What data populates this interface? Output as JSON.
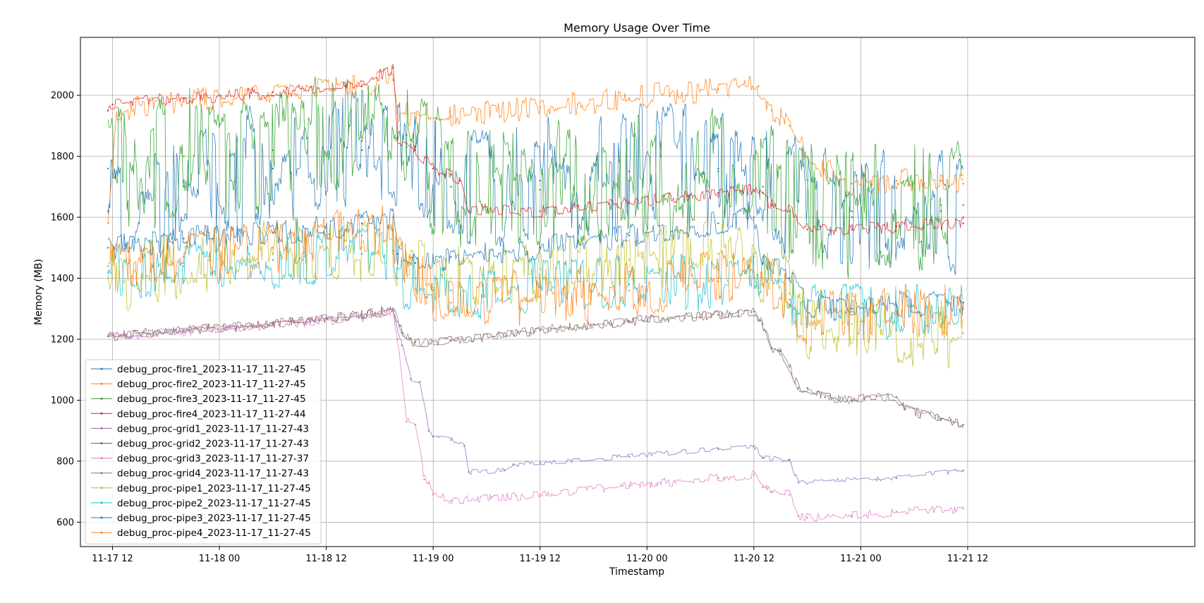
{
  "chart_data": {
    "type": "line",
    "title": "Memory Usage Over Time",
    "xlabel": "Timestamp",
    "ylabel": "Memory (MB)",
    "x_axis": "datetime (hours after 2023-11-17 00:00)",
    "xlim": [
      8.4,
      133.5
    ],
    "ylim": [
      520,
      2190
    ],
    "x_ticks": [
      {
        "value": 12,
        "label": "11-17 12"
      },
      {
        "value": 24,
        "label": "11-18 00"
      },
      {
        "value": 36,
        "label": "11-18 12"
      },
      {
        "value": 48,
        "label": "11-19 00"
      },
      {
        "value": 60,
        "label": "11-19 12"
      },
      {
        "value": 72,
        "label": "11-20 00"
      },
      {
        "value": 84,
        "label": "11-20 12"
      },
      {
        "value": 96,
        "label": "11-21 00"
      },
      {
        "value": 108,
        "label": "11-21 12"
      }
    ],
    "y_ticks": [
      600,
      800,
      1000,
      1200,
      1400,
      1600,
      1800,
      2000
    ],
    "grid": true,
    "legend_position": "lower-left",
    "series": [
      {
        "name": "debug_proc-fire1_2023-11-17_11-27-45",
        "color": "#1f77b4",
        "x": [
          11.5,
          20,
          30,
          40,
          45,
          50,
          60,
          70,
          80,
          85,
          95,
          105,
          107.5
        ],
        "y": [
          1620,
          1700,
          1760,
          1820,
          1870,
          1700,
          1720,
          1750,
          1760,
          1700,
          1600,
          1620,
          1600
        ],
        "band": 200
      },
      {
        "name": "debug_proc-fire2_2023-11-17_11-27-45",
        "color": "#ff7f0e",
        "x": [
          11.5,
          12.5,
          20,
          30,
          40,
          43.5,
          44,
          50,
          60,
          70,
          80,
          84.5,
          86,
          88,
          90,
          95,
          100,
          105,
          107.5
        ],
        "y": [
          1580,
          1960,
          1980,
          2000,
          2030,
          2050,
          1940,
          1930,
          1960,
          1990,
          2020,
          2030,
          1950,
          1900,
          1800,
          1710,
          1720,
          1720,
          1710
        ],
        "band": 40
      },
      {
        "name": "debug_proc-fire3_2023-11-17_11-27-45",
        "color": "#2ca02c",
        "x": [
          11.5,
          20,
          30,
          40,
          45,
          50,
          60,
          70,
          80,
          85,
          95,
          105,
          107.5
        ],
        "y": [
          1760,
          1800,
          1820,
          1850,
          1830,
          1700,
          1690,
          1720,
          1750,
          1680,
          1620,
          1640,
          1640
        ],
        "band": 210
      },
      {
        "name": "debug_proc-fire4_2023-11-17_11-27-44",
        "color": "#d62728",
        "x": [
          11.5,
          12,
          20,
          30,
          40,
          43.5,
          44,
          46,
          48,
          50,
          51,
          52,
          60,
          70,
          80,
          84,
          86,
          88,
          90,
          95,
          100,
          107.5
        ],
        "y": [
          1950,
          1970,
          1990,
          2010,
          2030,
          2090,
          1860,
          1820,
          1760,
          1740,
          1720,
          1620,
          1620,
          1650,
          1680,
          1690,
          1640,
          1620,
          1560,
          1560,
          1570,
          1580
        ],
        "band": 20
      },
      {
        "name": "debug_proc-grid1_2023-11-17_11-27-43",
        "color": "#9467bd",
        "x": [
          11.5,
          20,
          30,
          40,
          43.5,
          44.5,
          45.5,
          46.5,
          47.5,
          48,
          50,
          51.5,
          52,
          56,
          57,
          60,
          70,
          80,
          84,
          85,
          88,
          89,
          100,
          107.5
        ],
        "y": [
          1210,
          1230,
          1250,
          1280,
          1300,
          1180,
          1070,
          1060,
          900,
          880,
          870,
          850,
          765,
          770,
          790,
          795,
          815,
          840,
          850,
          810,
          805,
          730,
          745,
          770
        ],
        "band": 8
      },
      {
        "name": "debug_proc-grid2_2023-11-17_11-27-43",
        "color": "#8c564b",
        "x": [
          11.5,
          20,
          30,
          40,
          43.5,
          44.5,
          46,
          50,
          60,
          70,
          80,
          84,
          85,
          86,
          87,
          88,
          89,
          90,
          92,
          95,
          100,
          101,
          105,
          107.5
        ],
        "y": [
          1210,
          1230,
          1250,
          1280,
          1300,
          1220,
          1190,
          1195,
          1230,
          1260,
          1280,
          1290,
          1250,
          1170,
          1160,
          1110,
          1040,
          1040,
          1010,
          1000,
          1010,
          970,
          940,
          920
        ],
        "band": 16
      },
      {
        "name": "debug_proc-grid3_2023-11-17_11-27-37",
        "color": "#e377c2",
        "x": [
          11.5,
          20,
          30,
          40,
          43.5,
          44,
          45,
          46,
          47,
          47.5,
          48,
          50,
          60,
          70,
          80,
          84,
          85,
          86,
          88,
          89,
          90,
          95,
          100,
          107.5
        ],
        "y": [
          1210,
          1225,
          1245,
          1270,
          1290,
          1200,
          930,
          920,
          740,
          730,
          690,
          670,
          690,
          720,
          745,
          755,
          715,
          700,
          690,
          620,
          615,
          620,
          635,
          645
        ],
        "band": 14
      },
      {
        "name": "debug_proc-grid4_2023-11-17_11-27-43",
        "color": "#7f7f7f",
        "x": [
          11.5,
          20,
          30,
          40,
          43.5,
          44.5,
          46,
          50,
          60,
          70,
          80,
          84,
          85,
          86,
          87,
          88,
          89,
          90,
          92,
          95,
          100,
          101,
          105,
          107.5
        ],
        "y": [
          1210,
          1230,
          1250,
          1280,
          1300,
          1220,
          1190,
          1195,
          1230,
          1260,
          1280,
          1290,
          1250,
          1170,
          1160,
          1110,
          1040,
          1040,
          1010,
          1000,
          1010,
          970,
          940,
          920
        ],
        "band": 14
      },
      {
        "name": "debug_proc-pipe1_2023-11-17_11-27-45",
        "color": "#bcbd22",
        "x": [
          11.5,
          20,
          30,
          40,
          43.5,
          44,
          50,
          60,
          70,
          80,
          84,
          85,
          88,
          90,
          95,
          100,
          107.5
        ],
        "y": [
          1400,
          1450,
          1480,
          1500,
          1480,
          1430,
          1400,
          1430,
          1460,
          1480,
          1470,
          1400,
          1350,
          1250,
          1250,
          1230,
          1220
        ],
        "band": 110
      },
      {
        "name": "debug_proc-pipe2_2023-11-17_11-27-45",
        "color": "#17becf",
        "x": [
          11.5,
          20,
          30,
          40,
          43.5,
          44,
          50,
          60,
          70,
          80,
          84,
          85,
          88,
          90,
          95,
          100,
          107.5
        ],
        "y": [
          1420,
          1440,
          1460,
          1480,
          1490,
          1400,
          1360,
          1370,
          1380,
          1390,
          1400,
          1380,
          1330,
          1300,
          1290,
          1290,
          1300
        ],
        "band": 90
      },
      {
        "name": "debug_proc-pipe3_2023-11-17_11-27-45",
        "color": "#1f77b4",
        "x": [
          11.5,
          20,
          30,
          40,
          43.5,
          44,
          46,
          50,
          60,
          70,
          80,
          84,
          85,
          88,
          90,
          95,
          100,
          107.5
        ],
        "y": [
          1500,
          1530,
          1550,
          1580,
          1600,
          1480,
          1450,
          1470,
          1500,
          1540,
          1580,
          1600,
          1450,
          1400,
          1310,
          1300,
          1310,
          1320
        ],
        "band": 40
      },
      {
        "name": "debug_proc-pipe4_2023-11-17_11-27-45",
        "color": "#ff7f0e",
        "x": [
          11.5,
          20,
          30,
          40,
          43.5,
          44,
          46,
          48,
          50,
          60,
          70,
          80,
          84,
          85,
          88,
          90,
          95,
          100,
          107.5
        ],
        "y": [
          1440,
          1470,
          1500,
          1540,
          1560,
          1460,
          1400,
          1360,
          1320,
          1340,
          1360,
          1400,
          1420,
          1380,
          1330,
          1270,
          1280,
          1290,
          1300
        ],
        "band": 90
      }
    ]
  }
}
